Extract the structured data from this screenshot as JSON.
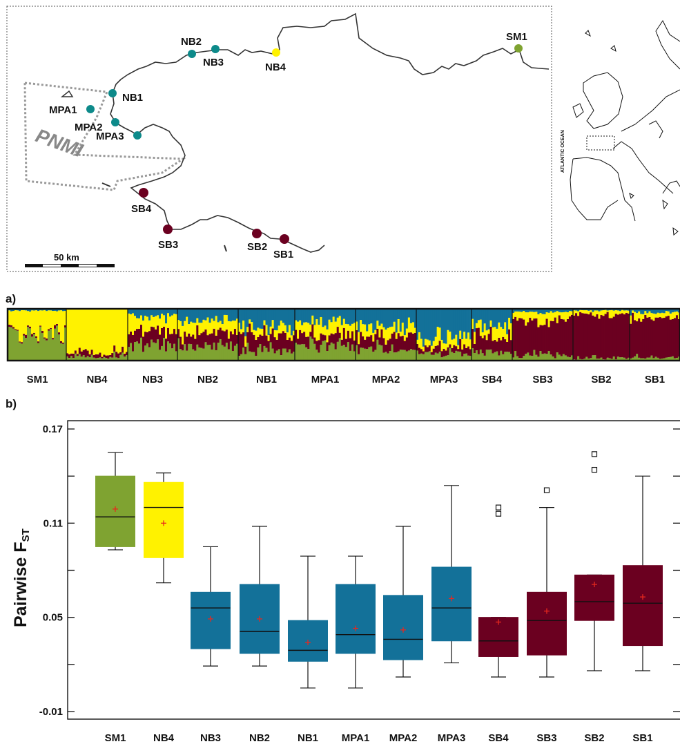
{
  "colors": {
    "green": "#7fa331",
    "yellow": "#fff200",
    "blue": "#137199",
    "maroon": "#6b0020",
    "teal": "#0d8a8a",
    "mean_marker": "#e8281e",
    "coast": "#333333"
  },
  "map": {
    "scale_label": "50 km",
    "park_label": "PNMI",
    "ocean_label": "ATLANTIC OCEAN",
    "sites": [
      {
        "name": "SM1",
        "color": "green"
      },
      {
        "name": "NB4",
        "color": "yellow"
      },
      {
        "name": "NB3",
        "color": "teal"
      },
      {
        "name": "NB2",
        "color": "teal"
      },
      {
        "name": "NB1",
        "color": "teal"
      },
      {
        "name": "MPA1",
        "color": "teal"
      },
      {
        "name": "MPA2",
        "color": "teal"
      },
      {
        "name": "MPA3",
        "color": "teal"
      },
      {
        "name": "SB4",
        "color": "maroon"
      },
      {
        "name": "SB3",
        "color": "maroon"
      },
      {
        "name": "SB2",
        "color": "maroon"
      },
      {
        "name": "SB1",
        "color": "maroon"
      }
    ]
  },
  "panel_a": {
    "label": "a)",
    "populations": [
      "SM1",
      "NB4",
      "NB3",
      "NB2",
      "NB1",
      "MPA1",
      "MPA2",
      "MPA3",
      "SB4",
      "SB3",
      "SB2",
      "SB1"
    ],
    "cluster_order": [
      "green",
      "maroon",
      "yellow",
      "blue"
    ],
    "mean_proportions": [
      [
        0.55,
        0.03,
        0.4,
        0.02
      ],
      [
        0.07,
        0.07,
        0.86,
        0.0
      ],
      [
        0.3,
        0.25,
        0.3,
        0.15
      ],
      [
        0.3,
        0.25,
        0.25,
        0.2
      ],
      [
        0.2,
        0.3,
        0.15,
        0.35
      ],
      [
        0.3,
        0.2,
        0.25,
        0.25
      ],
      [
        0.2,
        0.25,
        0.2,
        0.35
      ],
      [
        0.15,
        0.12,
        0.18,
        0.55
      ],
      [
        0.15,
        0.35,
        0.2,
        0.3
      ],
      [
        0.1,
        0.7,
        0.15,
        0.05
      ],
      [
        0.05,
        0.85,
        0.08,
        0.02
      ],
      [
        0.05,
        0.8,
        0.1,
        0.05
      ]
    ]
  },
  "chart_data": {
    "type": "box",
    "panel_label": "b)",
    "ylabel": "Pairwise F",
    "ylabel_sub": "ST",
    "ylim": [
      -0.01,
      0.17
    ],
    "yticks": [
      -0.01,
      0.05,
      0.11,
      0.17
    ],
    "ytick_labels": [
      "-0.01",
      "0.05",
      "0.11",
      "0.17"
    ],
    "categories": [
      "SM1",
      "NB4",
      "NB3",
      "NB2",
      "NB1",
      "MPA1",
      "MPA2",
      "MPA3",
      "SB4",
      "SB3",
      "SB2",
      "SB1"
    ],
    "boxes": [
      {
        "name": "SM1",
        "color": "green",
        "min": 0.093,
        "q1": 0.095,
        "median": 0.114,
        "q3": 0.14,
        "max": 0.155,
        "mean": 0.119,
        "outliers": []
      },
      {
        "name": "NB4",
        "color": "yellow",
        "min": 0.072,
        "q1": 0.088,
        "median": 0.12,
        "q3": 0.136,
        "max": 0.142,
        "mean": 0.11,
        "outliers": []
      },
      {
        "name": "NB3",
        "color": "blue",
        "min": 0.019,
        "q1": 0.03,
        "median": 0.056,
        "q3": 0.066,
        "max": 0.095,
        "mean": 0.049,
        "outliers": []
      },
      {
        "name": "NB2",
        "color": "blue",
        "min": 0.019,
        "q1": 0.027,
        "median": 0.041,
        "q3": 0.071,
        "max": 0.108,
        "mean": 0.049,
        "outliers": []
      },
      {
        "name": "NB1",
        "color": "blue",
        "min": 0.005,
        "q1": 0.022,
        "median": 0.029,
        "q3": 0.048,
        "max": 0.089,
        "mean": 0.034,
        "outliers": []
      },
      {
        "name": "MPA1",
        "color": "blue",
        "min": 0.005,
        "q1": 0.027,
        "median": 0.039,
        "q3": 0.071,
        "max": 0.089,
        "mean": 0.043,
        "outliers": []
      },
      {
        "name": "MPA2",
        "color": "blue",
        "min": 0.012,
        "q1": 0.023,
        "median": 0.036,
        "q3": 0.064,
        "max": 0.108,
        "mean": 0.042,
        "outliers": []
      },
      {
        "name": "MPA3",
        "color": "blue",
        "min": 0.021,
        "q1": 0.035,
        "median": 0.056,
        "q3": 0.082,
        "max": 0.134,
        "mean": 0.062,
        "outliers": []
      },
      {
        "name": "SB4",
        "color": "maroon",
        "min": 0.012,
        "q1": 0.025,
        "median": 0.035,
        "q3": 0.05,
        "max": 0.05,
        "mean": 0.047,
        "outliers": [
          0.116,
          0.12
        ]
      },
      {
        "name": "SB3",
        "color": "maroon",
        "min": 0.012,
        "q1": 0.026,
        "median": 0.048,
        "q3": 0.066,
        "max": 0.12,
        "mean": 0.054,
        "outliers": [
          0.131
        ]
      },
      {
        "name": "SB2",
        "color": "maroon",
        "min": 0.016,
        "q1": 0.048,
        "median": 0.06,
        "q3": 0.077,
        "max": 0.077,
        "mean": 0.071,
        "outliers": [
          0.144,
          0.154
        ]
      },
      {
        "name": "SB1",
        "color": "maroon",
        "min": 0.016,
        "q1": 0.032,
        "median": 0.059,
        "q3": 0.083,
        "max": 0.14,
        "mean": 0.063,
        "outliers": []
      }
    ],
    "mean_marker": "+",
    "outlier_marker": "square"
  }
}
